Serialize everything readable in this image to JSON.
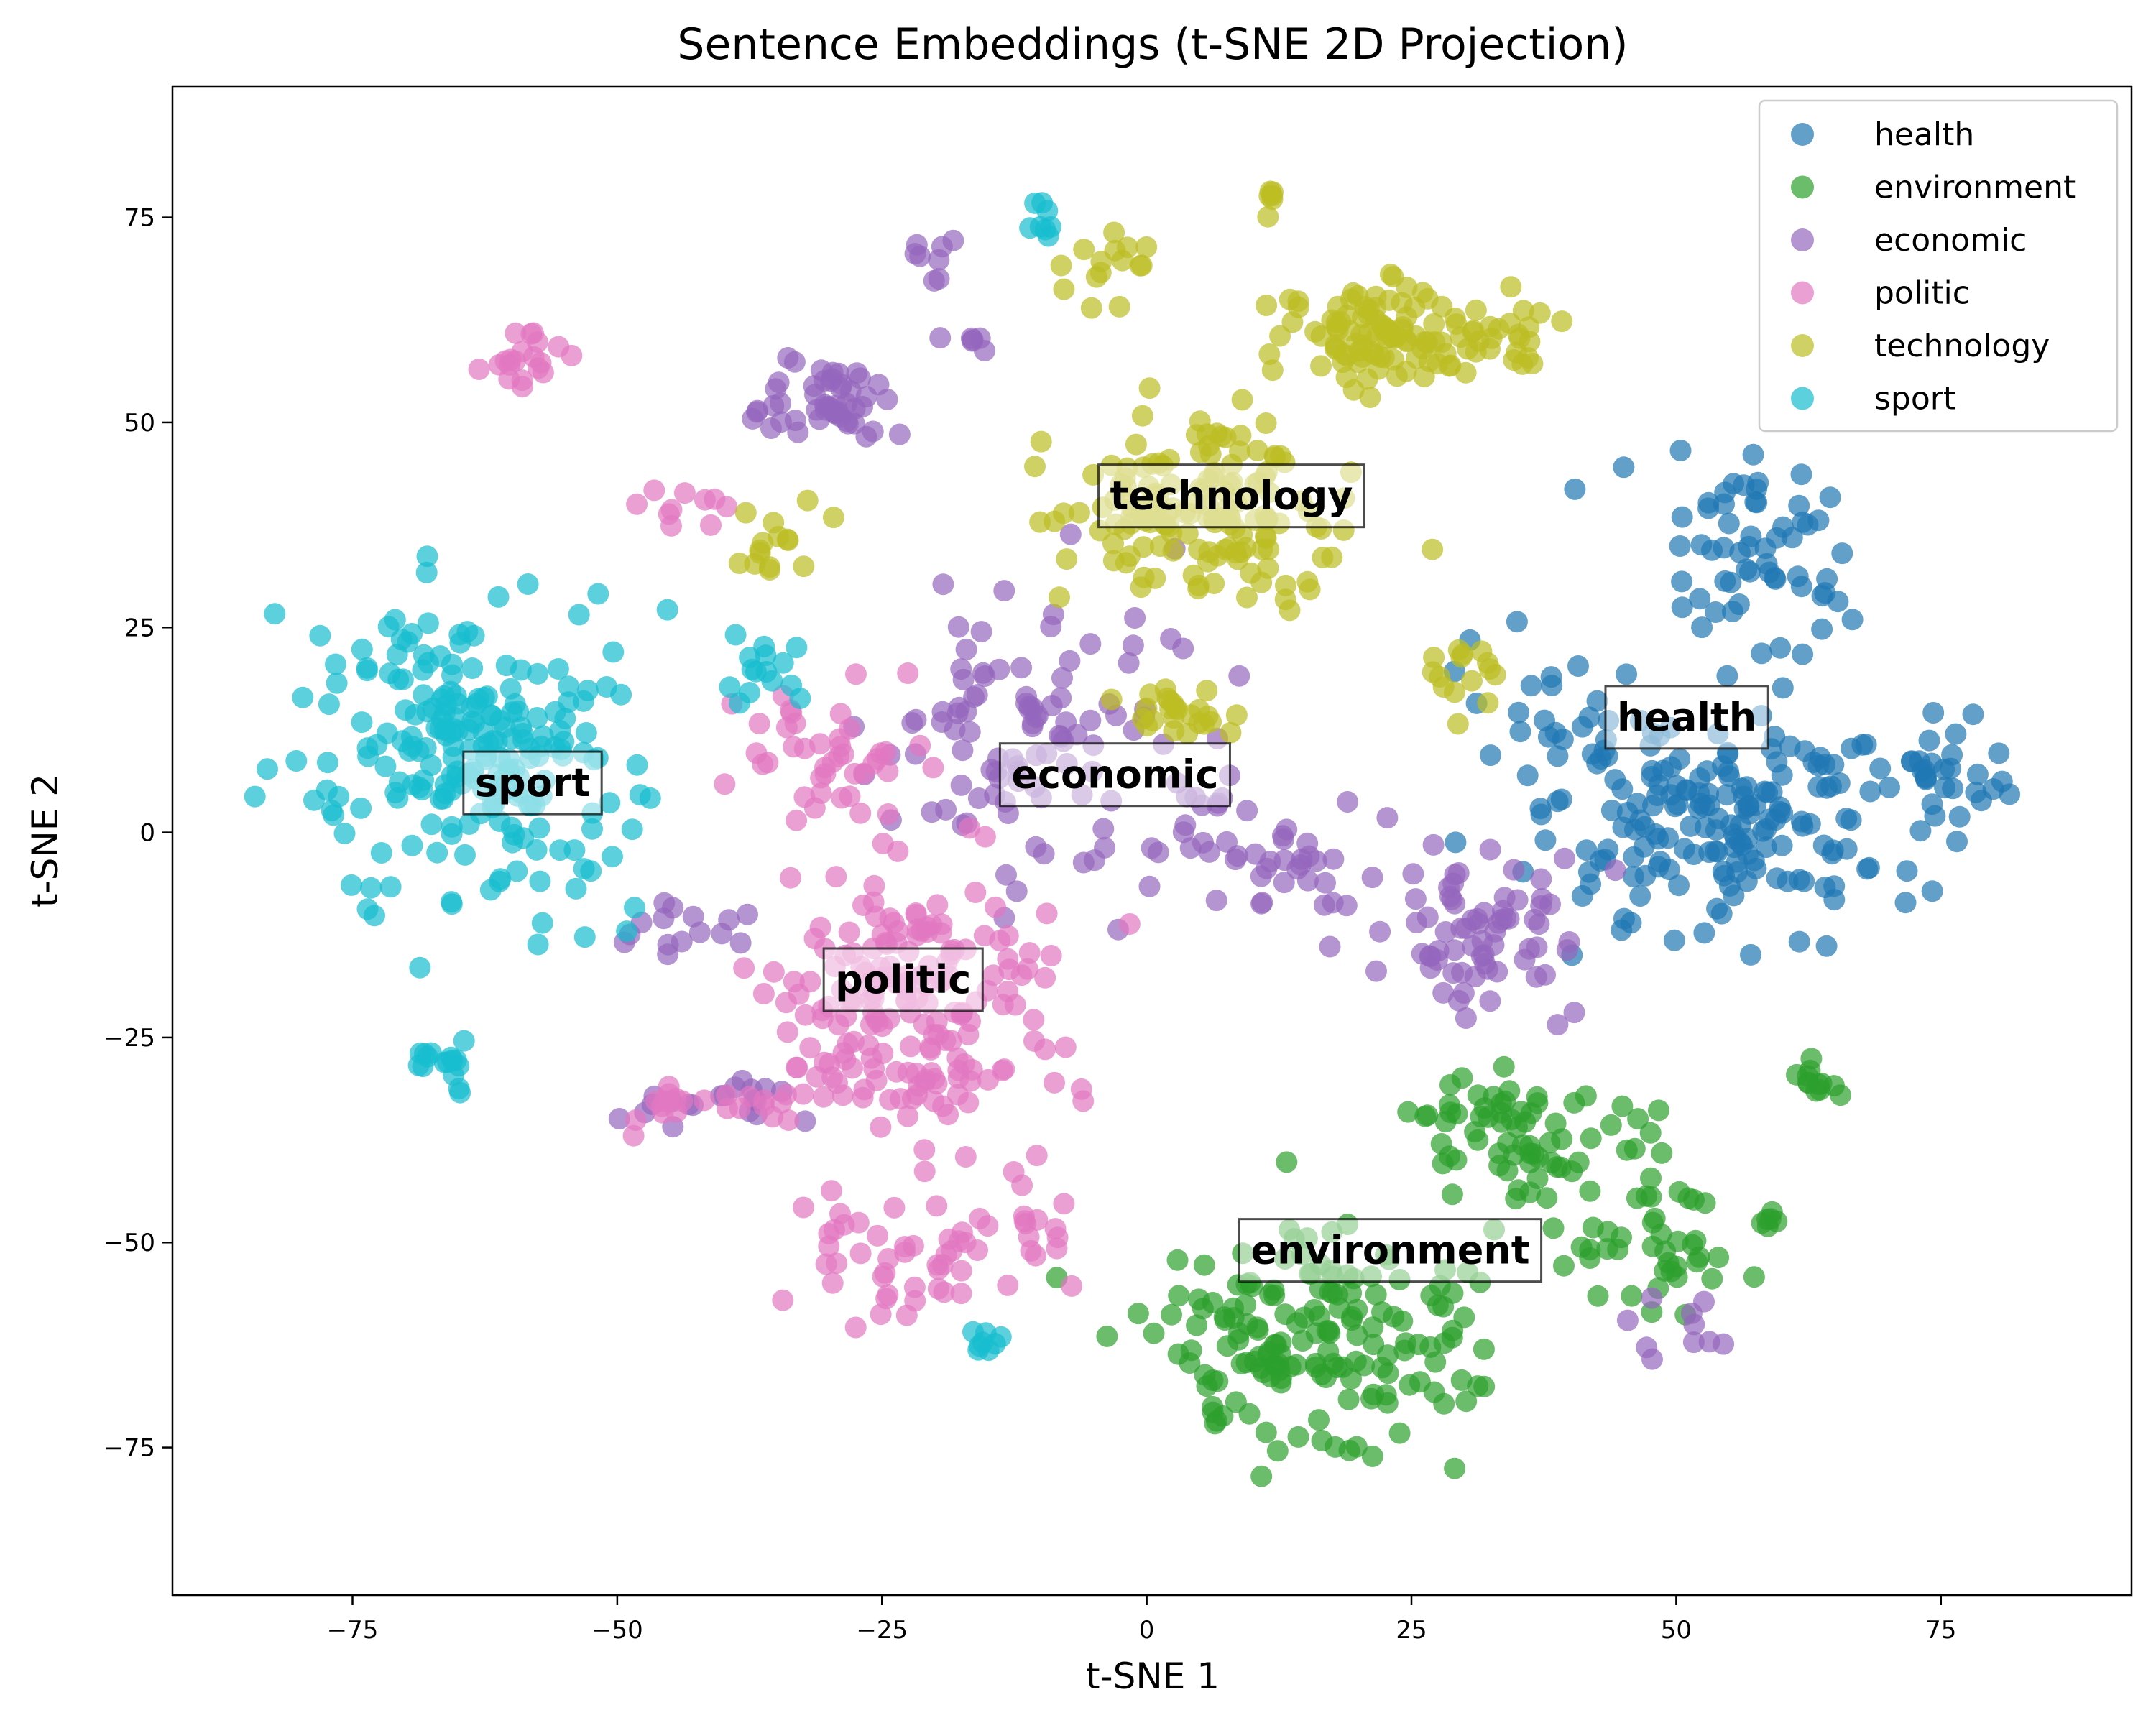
{
  "chart_data": {
    "type": "scatter",
    "title": "Sentence Embeddings (t-SNE 2D Projection)",
    "xlabel": "t-SNE 1",
    "ylabel": "t-SNE 2",
    "xlim": [
      -92,
      93
    ],
    "ylim": [
      -93,
      91
    ],
    "xticks": [
      -75,
      -50,
      -25,
      0,
      25,
      50,
      75
    ],
    "yticks": [
      -75,
      -50,
      -25,
      0,
      25,
      50,
      75
    ],
    "xtick_labels": [
      "−75",
      "−50",
      "−25",
      "0",
      "25",
      "50",
      "75"
    ],
    "ytick_labels": [
      "−75",
      "−50",
      "−25",
      "0",
      "25",
      "50",
      "75"
    ],
    "grid": false,
    "legend_position": "top-right",
    "series": [
      {
        "name": "health",
        "color": "#1f77b4",
        "cluster_label": "health",
        "label_at": [
          51,
          14
        ],
        "clusters": [
          {
            "center": [
              55,
              0
            ],
            "spread": [
              15,
              13
            ],
            "count": 170
          },
          {
            "center": [
              58,
              33
            ],
            "spread": [
              8,
              11
            ],
            "count": 60
          },
          {
            "center": [
              40,
              12
            ],
            "spread": [
              10,
              8
            ],
            "count": 30
          },
          {
            "center": [
              75,
              8
            ],
            "spread": [
              6,
              6
            ],
            "count": 30
          }
        ]
      },
      {
        "name": "environment",
        "color": "#2ca02c",
        "cluster_label": "environment",
        "label_at": [
          23,
          -51
        ],
        "clusters": [
          {
            "center": [
              16,
              -62
            ],
            "spread": [
              14,
              12
            ],
            "count": 170
          },
          {
            "center": [
              35,
              -37
            ],
            "spread": [
              12,
              8
            ],
            "count": 70
          },
          {
            "center": [
              48,
              -50
            ],
            "spread": [
              8,
              8
            ],
            "count": 40
          },
          {
            "center": [
              63,
              -30
            ],
            "spread": [
              3,
              3
            ],
            "count": 12
          },
          {
            "center": [
              58,
              -47
            ],
            "spread": [
              2,
              1
            ],
            "count": 6
          }
        ]
      },
      {
        "name": "economic",
        "color": "#9467bd",
        "cluster_label": "economic",
        "label_at": [
          -3,
          7
        ],
        "clusters": [
          {
            "center": [
              -12,
              12
            ],
            "spread": [
              12,
              14
            ],
            "count": 100
          },
          {
            "center": [
              10,
              -3
            ],
            "spread": [
              10,
              8
            ],
            "count": 50
          },
          {
            "center": [
              32,
              -13
            ],
            "spread": [
              9,
              9
            ],
            "count": 70
          },
          {
            "center": [
              -30,
              53
            ],
            "spread": [
              5,
              5
            ],
            "count": 50
          },
          {
            "center": [
              -40,
              -33
            ],
            "spread": [
              8,
              3
            ],
            "count": 20
          },
          {
            "center": [
              -40,
              -12
            ],
            "spread": [
              6,
              4
            ],
            "count": 15
          },
          {
            "center": [
              -20,
              70
            ],
            "spread": [
              2,
              3
            ],
            "count": 8
          },
          {
            "center": [
              -17,
              60
            ],
            "spread": [
              3,
              1
            ],
            "count": 6
          },
          {
            "center": [
              50,
              -60
            ],
            "spread": [
              5,
              4
            ],
            "count": 10
          }
        ]
      },
      {
        "name": "politic",
        "color": "#e377c2",
        "cluster_label": "politic",
        "label_at": [
          -23,
          -18
        ],
        "clusters": [
          {
            "center": [
              -22,
              -20
            ],
            "spread": [
              12,
              18
            ],
            "count": 200
          },
          {
            "center": [
              -30,
              10
            ],
            "spread": [
              9,
              8
            ],
            "count": 40
          },
          {
            "center": [
              -59,
              58
            ],
            "spread": [
              3,
              4
            ],
            "count": 20
          },
          {
            "center": [
              -43,
              -33
            ],
            "spread": [
              8,
              3
            ],
            "count": 20
          },
          {
            "center": [
              -25,
              -52
            ],
            "spread": [
              9,
              7
            ],
            "count": 40
          },
          {
            "center": [
              -12,
              -50
            ],
            "spread": [
              6,
              5
            ],
            "count": 15
          },
          {
            "center": [
              -43,
              41
            ],
            "spread": [
              4,
              3
            ],
            "count": 10
          }
        ]
      },
      {
        "name": "technology",
        "color": "#bcbd22",
        "cluster_label": "technology",
        "label_at": [
          8,
          41
        ],
        "clusters": [
          {
            "center": [
              5,
              40
            ],
            "spread": [
              12,
              11
            ],
            "count": 150
          },
          {
            "center": [
              22,
              60
            ],
            "spread": [
              9,
              7
            ],
            "count": 100
          },
          {
            "center": [
              -3,
              70
            ],
            "spread": [
              3,
              6
            ],
            "count": 15
          },
          {
            "center": [
              12,
              78
            ],
            "spread": [
              1,
              2
            ],
            "count": 6
          },
          {
            "center": [
              33,
              60
            ],
            "spread": [
              4,
              4
            ],
            "count": 20
          },
          {
            "center": [
              -35,
              35
            ],
            "spread": [
              5,
              5
            ],
            "count": 15
          },
          {
            "center": [
              3,
              15
            ],
            "spread": [
              6,
              4
            ],
            "count": 25
          },
          {
            "center": [
              30,
              20
            ],
            "spread": [
              4,
              3
            ],
            "count": 15
          }
        ]
      },
      {
        "name": "sport",
        "color": "#17becf",
        "cluster_label": "sport",
        "label_at": [
          -58,
          6
        ],
        "clusters": [
          {
            "center": [
              -63,
              10
            ],
            "spread": [
              13,
              17
            ],
            "count": 230
          },
          {
            "center": [
              -67,
              -28
            ],
            "spread": [
              3,
              3
            ],
            "count": 15
          },
          {
            "center": [
              -38,
              20
            ],
            "spread": [
              4,
              4
            ],
            "count": 15
          },
          {
            "center": [
              -10,
              75
            ],
            "spread": [
              2,
              3
            ],
            "count": 8
          },
          {
            "center": [
              -15,
              -62
            ],
            "spread": [
              2,
              1
            ],
            "count": 8
          }
        ]
      }
    ]
  }
}
